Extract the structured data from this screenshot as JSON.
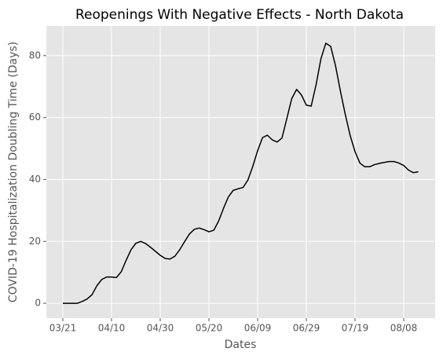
{
  "chart_data": {
    "type": "line",
    "title": "Reopenings With Negative Effects - North Dakota",
    "x_label": "Dates",
    "y_label": "COVID-19 Hospitalization Doubling Time (Days)",
    "categories": [
      "03/21",
      null,
      null,
      null,
      null,
      null,
      null,
      null,
      null,
      null,
      "04/10",
      null,
      null,
      null,
      null,
      null,
      null,
      null,
      null,
      null,
      "04/30",
      null,
      null,
      null,
      null,
      null,
      null,
      null,
      null,
      null,
      "05/20",
      null,
      null,
      null,
      null,
      null,
      null,
      null,
      null,
      null,
      "06/09",
      null,
      null,
      null,
      null,
      null,
      null,
      null,
      null,
      null,
      "06/29",
      null,
      null,
      null,
      null,
      null,
      null,
      null,
      null,
      null,
      "07/19",
      null,
      null,
      null,
      null,
      null,
      null,
      null,
      null,
      null,
      "08/08",
      null,
      null,
      null
    ],
    "series": [
      {
        "color": "#000000",
        "values": [
          0,
          0,
          0,
          0,
          0.6,
          1.4,
          2.8,
          5.7,
          7.7,
          8.5,
          8.5,
          8.3,
          10.2,
          13.9,
          17.3,
          19.4,
          20,
          19.3,
          18.1,
          16.8,
          15.5,
          14.5,
          14.3,
          15.2,
          17.3,
          19.9,
          22.4,
          23.9,
          24.3,
          23.8,
          23.1,
          23.6,
          26.6,
          30.7,
          34.4,
          36.5,
          37,
          37.4,
          39.8,
          44.2,
          49.3,
          53.5,
          54.3,
          52.8,
          52.1,
          53.4,
          59.7,
          66.1,
          69.1,
          67.3,
          64,
          63.7,
          70.6,
          79,
          84,
          83,
          76.7,
          68.5,
          61,
          54.2,
          49,
          45.3,
          44.1,
          44.1,
          44.8,
          45.2,
          45.5,
          45.8,
          45.8,
          45.3,
          44.5,
          43,
          42.2,
          42.5
        ]
      }
    ],
    "ylim": [
      -4.8,
      89.6
    ],
    "yticks": [
      0,
      20,
      40,
      60,
      80
    ],
    "grid": true
  }
}
